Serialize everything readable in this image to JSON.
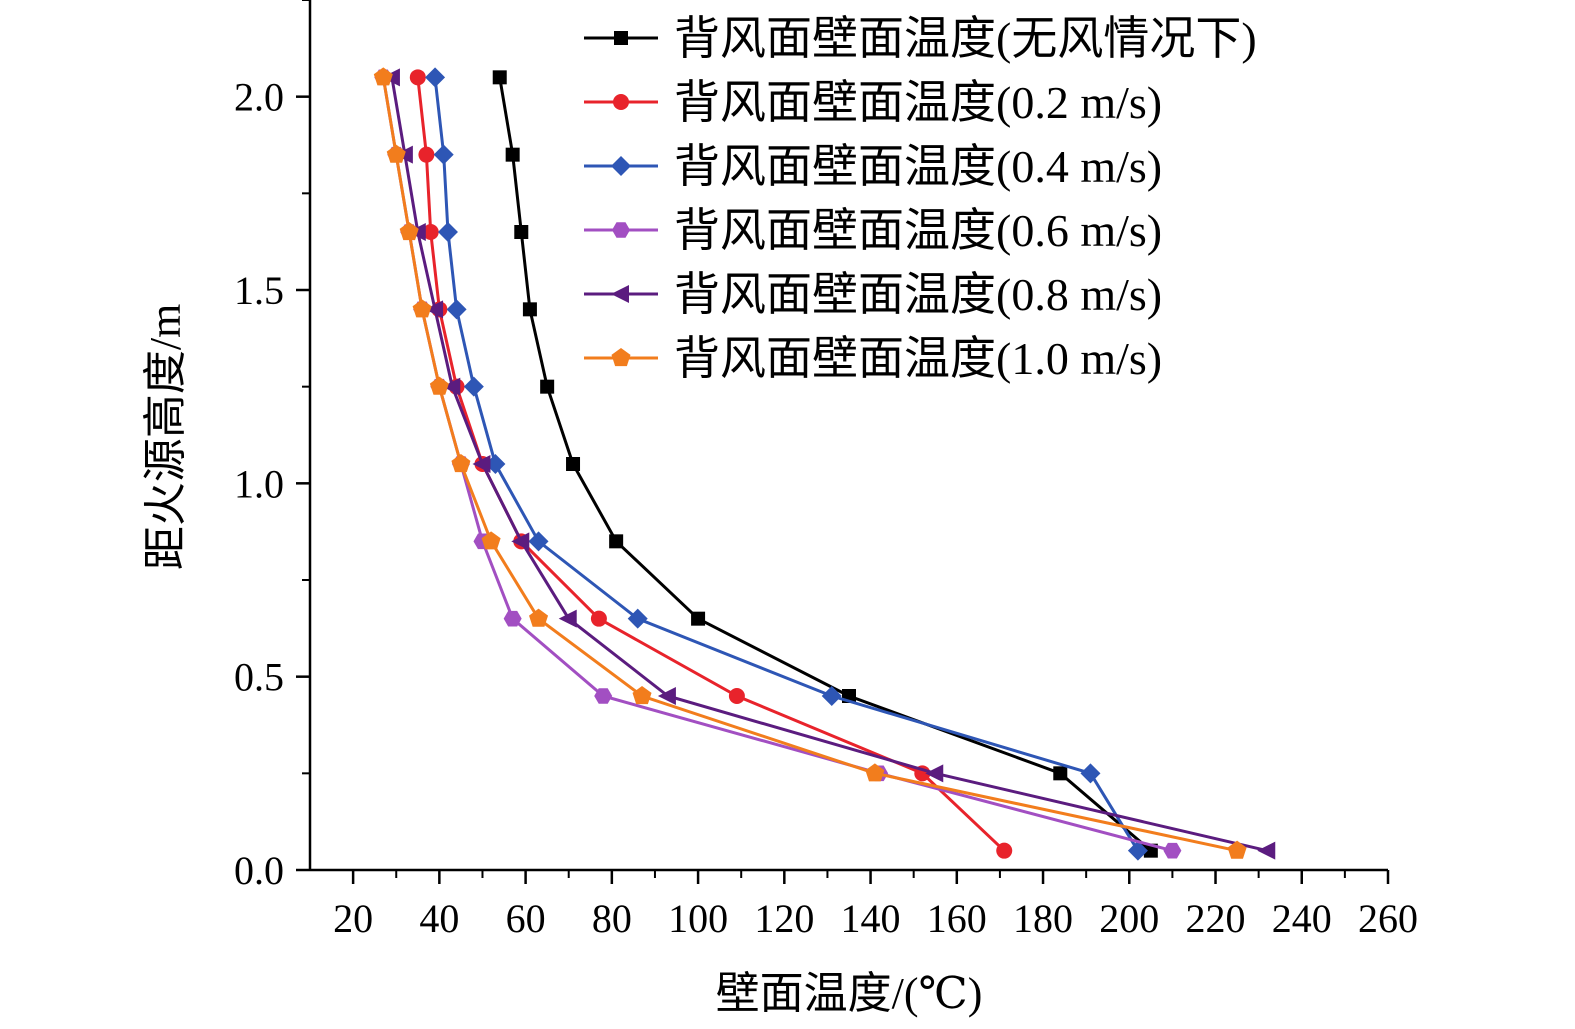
{
  "chart_data": {
    "type": "line",
    "xlabel": "壁面温度/(℃)",
    "ylabel": "距火源高度/m",
    "xlim": [
      10,
      260
    ],
    "ylim": [
      0,
      2.25
    ],
    "xticks": [
      20,
      40,
      60,
      80,
      100,
      120,
      140,
      160,
      180,
      200,
      220,
      240,
      260
    ],
    "xtick_labels": [
      "20",
      "40",
      "60",
      "80",
      "100",
      "120",
      "140",
      "160",
      "180",
      "200",
      "220",
      "240",
      "260"
    ],
    "yticks": [
      0,
      0.5,
      1.0,
      1.5,
      2.0
    ],
    "ytick_labels": [
      "0.0",
      "0.5",
      "1.0",
      "1.5",
      "2.0"
    ],
    "legend_position": "top-right",
    "grid": false,
    "series": [
      {
        "name": "背风面壁面温度(无风情况下)",
        "color": "#000000",
        "marker": "square",
        "points": [
          [
            54,
            2.05
          ],
          [
            57,
            1.85
          ],
          [
            59,
            1.65
          ],
          [
            61,
            1.45
          ],
          [
            65,
            1.25
          ],
          [
            71,
            1.05
          ],
          [
            81,
            0.85
          ],
          [
            100,
            0.65
          ],
          [
            135,
            0.45
          ],
          [
            184,
            0.25
          ],
          [
            205,
            0.05
          ]
        ]
      },
      {
        "name": "背风面壁面温度(0.2 m/s)",
        "color": "#e8232b",
        "marker": "circle",
        "points": [
          [
            35,
            2.05
          ],
          [
            37,
            1.85
          ],
          [
            38,
            1.65
          ],
          [
            40,
            1.45
          ],
          [
            44,
            1.25
          ],
          [
            50,
            1.05
          ],
          [
            59,
            0.85
          ],
          [
            77,
            0.65
          ],
          [
            109,
            0.45
          ],
          [
            152,
            0.25
          ],
          [
            171,
            0.05
          ]
        ]
      },
      {
        "name": "背风面壁面温度(0.4 m/s)",
        "color": "#2e56b5",
        "marker": "diamond",
        "points": [
          [
            39,
            2.05
          ],
          [
            41,
            1.85
          ],
          [
            42,
            1.65
          ],
          [
            44,
            1.45
          ],
          [
            48,
            1.25
          ],
          [
            53,
            1.05
          ],
          [
            63,
            0.85
          ],
          [
            86,
            0.65
          ],
          [
            131,
            0.45
          ],
          [
            191,
            0.25
          ],
          [
            202,
            0.05
          ]
        ]
      },
      {
        "name": "背风面壁面温度(0.6 m/s)",
        "color": "#a24fc2",
        "marker": "hexagon",
        "points": [
          [
            27,
            2.05
          ],
          [
            30,
            1.85
          ],
          [
            33,
            1.65
          ],
          [
            36,
            1.45
          ],
          [
            40,
            1.25
          ],
          [
            45,
            1.05
          ],
          [
            50,
            0.85
          ],
          [
            57,
            0.65
          ],
          [
            78,
            0.45
          ],
          [
            142,
            0.25
          ],
          [
            210,
            0.05
          ]
        ]
      },
      {
        "name": "背风面壁面温度(0.8 m/s)",
        "color": "#5b1c7f",
        "marker": "triangle-left",
        "points": [
          [
            29,
            2.05
          ],
          [
            32,
            1.85
          ],
          [
            35,
            1.65
          ],
          [
            39,
            1.45
          ],
          [
            43,
            1.25
          ],
          [
            50,
            1.05
          ],
          [
            59,
            0.85
          ],
          [
            70,
            0.65
          ],
          [
            93,
            0.45
          ],
          [
            155,
            0.25
          ],
          [
            232,
            0.05
          ]
        ]
      },
      {
        "name": "背风面壁面温度(1.0 m/s)",
        "color": "#f27d1d",
        "marker": "pentagon",
        "points": [
          [
            27,
            2.05
          ],
          [
            30,
            1.85
          ],
          [
            33,
            1.65
          ],
          [
            36,
            1.45
          ],
          [
            40,
            1.25
          ],
          [
            45,
            1.05
          ],
          [
            52,
            0.85
          ],
          [
            63,
            0.65
          ],
          [
            87,
            0.45
          ],
          [
            141,
            0.25
          ],
          [
            225,
            0.05
          ]
        ]
      }
    ]
  }
}
